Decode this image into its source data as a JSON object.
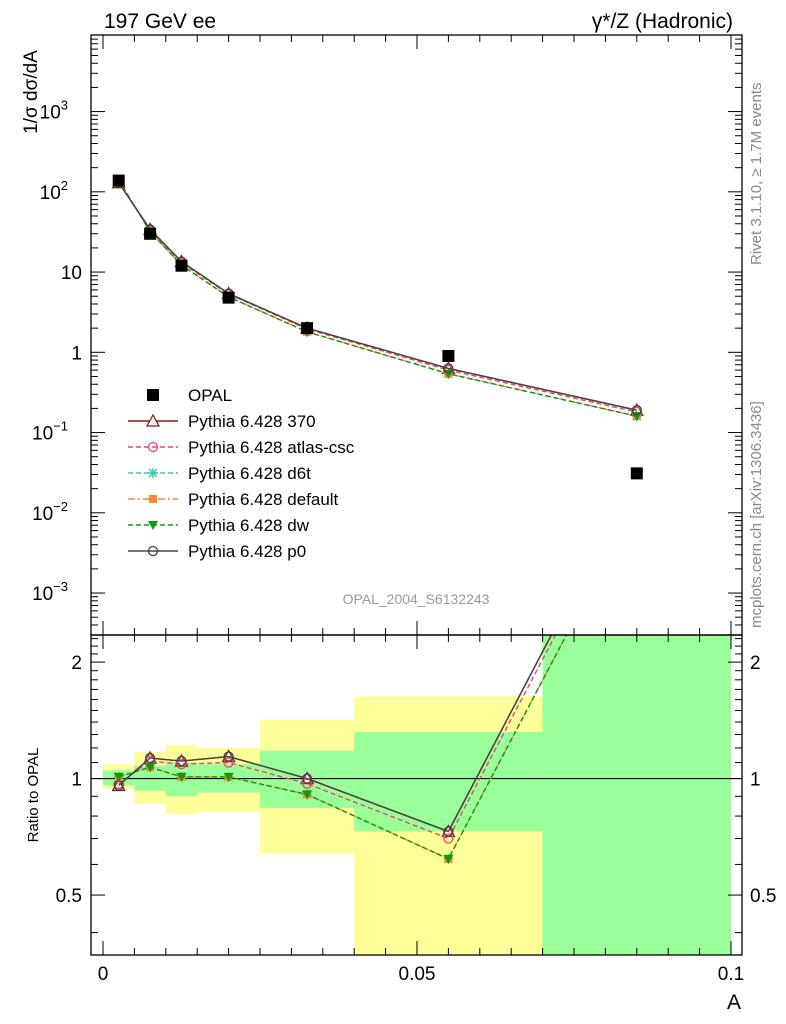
{
  "header": {
    "left": "197 GeV ee",
    "right": "γ*/Z (Hadronic)"
  },
  "side_text": {
    "rivet": "Rivet 3.1.10, ≥ 1.7M events",
    "mcplots": "mcplots.cern.ch [arXiv:1306.3436]"
  },
  "watermark": "OPAL_2004_S6132243",
  "labels": {
    "ylabel_top": "1/σ dσ/dA",
    "ylabel_bottom": "Ratio to OPAL",
    "xlabel": "A"
  },
  "colors": {
    "band_yellow": "#ffff99",
    "band_green": "#99ff99",
    "opal": "#000000",
    "p370": "#8b1a1a",
    "atlas": "#ee4466",
    "d6t": "#33ccaa",
    "default": "#ff8833",
    "dw": "#119911",
    "p0": "#444444"
  },
  "chart_data": {
    "type": "line",
    "x_axis": {
      "label": "A",
      "range": [
        0,
        0.1
      ],
      "ticks": [
        "0",
        "0.05",
        "0.1"
      ]
    },
    "main_panel": {
      "ylabel": "1/σ dσ/dA",
      "scale": "log",
      "yrange": [
        0.0003,
        9000
      ],
      "tick_labels": [
        "10^-3",
        "10^-2",
        "10^-1",
        "1",
        "10",
        "10^2",
        "10^3"
      ]
    },
    "ratio_panel": {
      "ylabel": "Ratio to OPAL",
      "scale": "log",
      "yrange": [
        0.35,
        2.35
      ],
      "tick_labels": [
        "0.5",
        "1",
        "2"
      ]
    },
    "bins": [
      {
        "lo": 0.0,
        "hi": 0.005
      },
      {
        "lo": 0.005,
        "hi": 0.01
      },
      {
        "lo": 0.01,
        "hi": 0.015
      },
      {
        "lo": 0.015,
        "hi": 0.025
      },
      {
        "lo": 0.025,
        "hi": 0.04
      },
      {
        "lo": 0.04,
        "hi": 0.07
      },
      {
        "lo": 0.07,
        "hi": 0.1
      }
    ],
    "data": {
      "name": "OPAL",
      "x": [
        0.0025,
        0.0075,
        0.0125,
        0.02,
        0.0325,
        0.055,
        0.085
      ],
      "y": [
        138,
        30,
        12,
        4.8,
        2.0,
        0.9,
        0.031
      ]
    },
    "bands": {
      "yellow": [
        [
          0.94,
          1.09
        ],
        [
          0.86,
          1.17
        ],
        [
          0.81,
          1.22
        ],
        [
          0.82,
          1.2
        ],
        [
          0.64,
          1.42
        ],
        [
          0.35,
          1.63
        ],
        [
          0.35,
          2.35
        ]
      ],
      "green": [
        [
          0.96,
          1.05
        ],
        [
          0.93,
          1.08
        ],
        [
          0.9,
          1.1
        ],
        [
          0.92,
          1.09
        ],
        [
          0.84,
          1.18
        ],
        [
          0.73,
          1.32
        ],
        [
          0.35,
          2.35
        ]
      ]
    },
    "series": [
      {
        "name": "Pythia 6.428 370",
        "marker": "triangle-open",
        "dash": "solid",
        "y": [
          130,
          34,
          13.5,
          5.4,
          2.0,
          0.63,
          0.19
        ],
        "ratio": [
          0.96,
          1.13,
          1.11,
          1.14,
          1.0,
          0.73,
          6.2
        ]
      },
      {
        "name": "Pythia 6.428 atlas-csc",
        "marker": "circle-open",
        "dash": "dashed",
        "y": [
          132,
          33,
          13.0,
          5.3,
          1.95,
          0.6,
          0.18
        ],
        "ratio": [
          0.97,
          1.11,
          1.09,
          1.1,
          0.97,
          0.7,
          5.9
        ]
      },
      {
        "name": "Pythia 6.428 d6t",
        "marker": "star",
        "dash": "dashed",
        "y": [
          140,
          32,
          12.2,
          4.9,
          1.8,
          0.54,
          0.16
        ],
        "ratio": [
          1.01,
          1.07,
          1.01,
          1.01,
          0.91,
          0.62,
          5.2
        ]
      },
      {
        "name": "Pythia 6.428 default",
        "marker": "square",
        "dash": "dashdot",
        "y": [
          140,
          32,
          12.2,
          4.9,
          1.8,
          0.54,
          0.16
        ],
        "ratio": [
          1.01,
          1.07,
          1.01,
          1.01,
          0.91,
          0.62,
          5.2
        ]
      },
      {
        "name": "Pythia 6.428 dw",
        "marker": "triangle-down",
        "dash": "dashed",
        "y": [
          140,
          32,
          12.2,
          4.9,
          1.8,
          0.54,
          0.16
        ],
        "ratio": [
          1.01,
          1.07,
          1.01,
          1.01,
          0.91,
          0.62,
          5.2
        ]
      },
      {
        "name": "Pythia 6.428 p0",
        "marker": "circle-open",
        "dash": "solid",
        "y": [
          130,
          34,
          13.5,
          5.4,
          2.0,
          0.63,
          0.19
        ],
        "ratio": [
          0.96,
          1.13,
          1.11,
          1.14,
          1.0,
          0.73,
          6.2
        ]
      }
    ]
  }
}
